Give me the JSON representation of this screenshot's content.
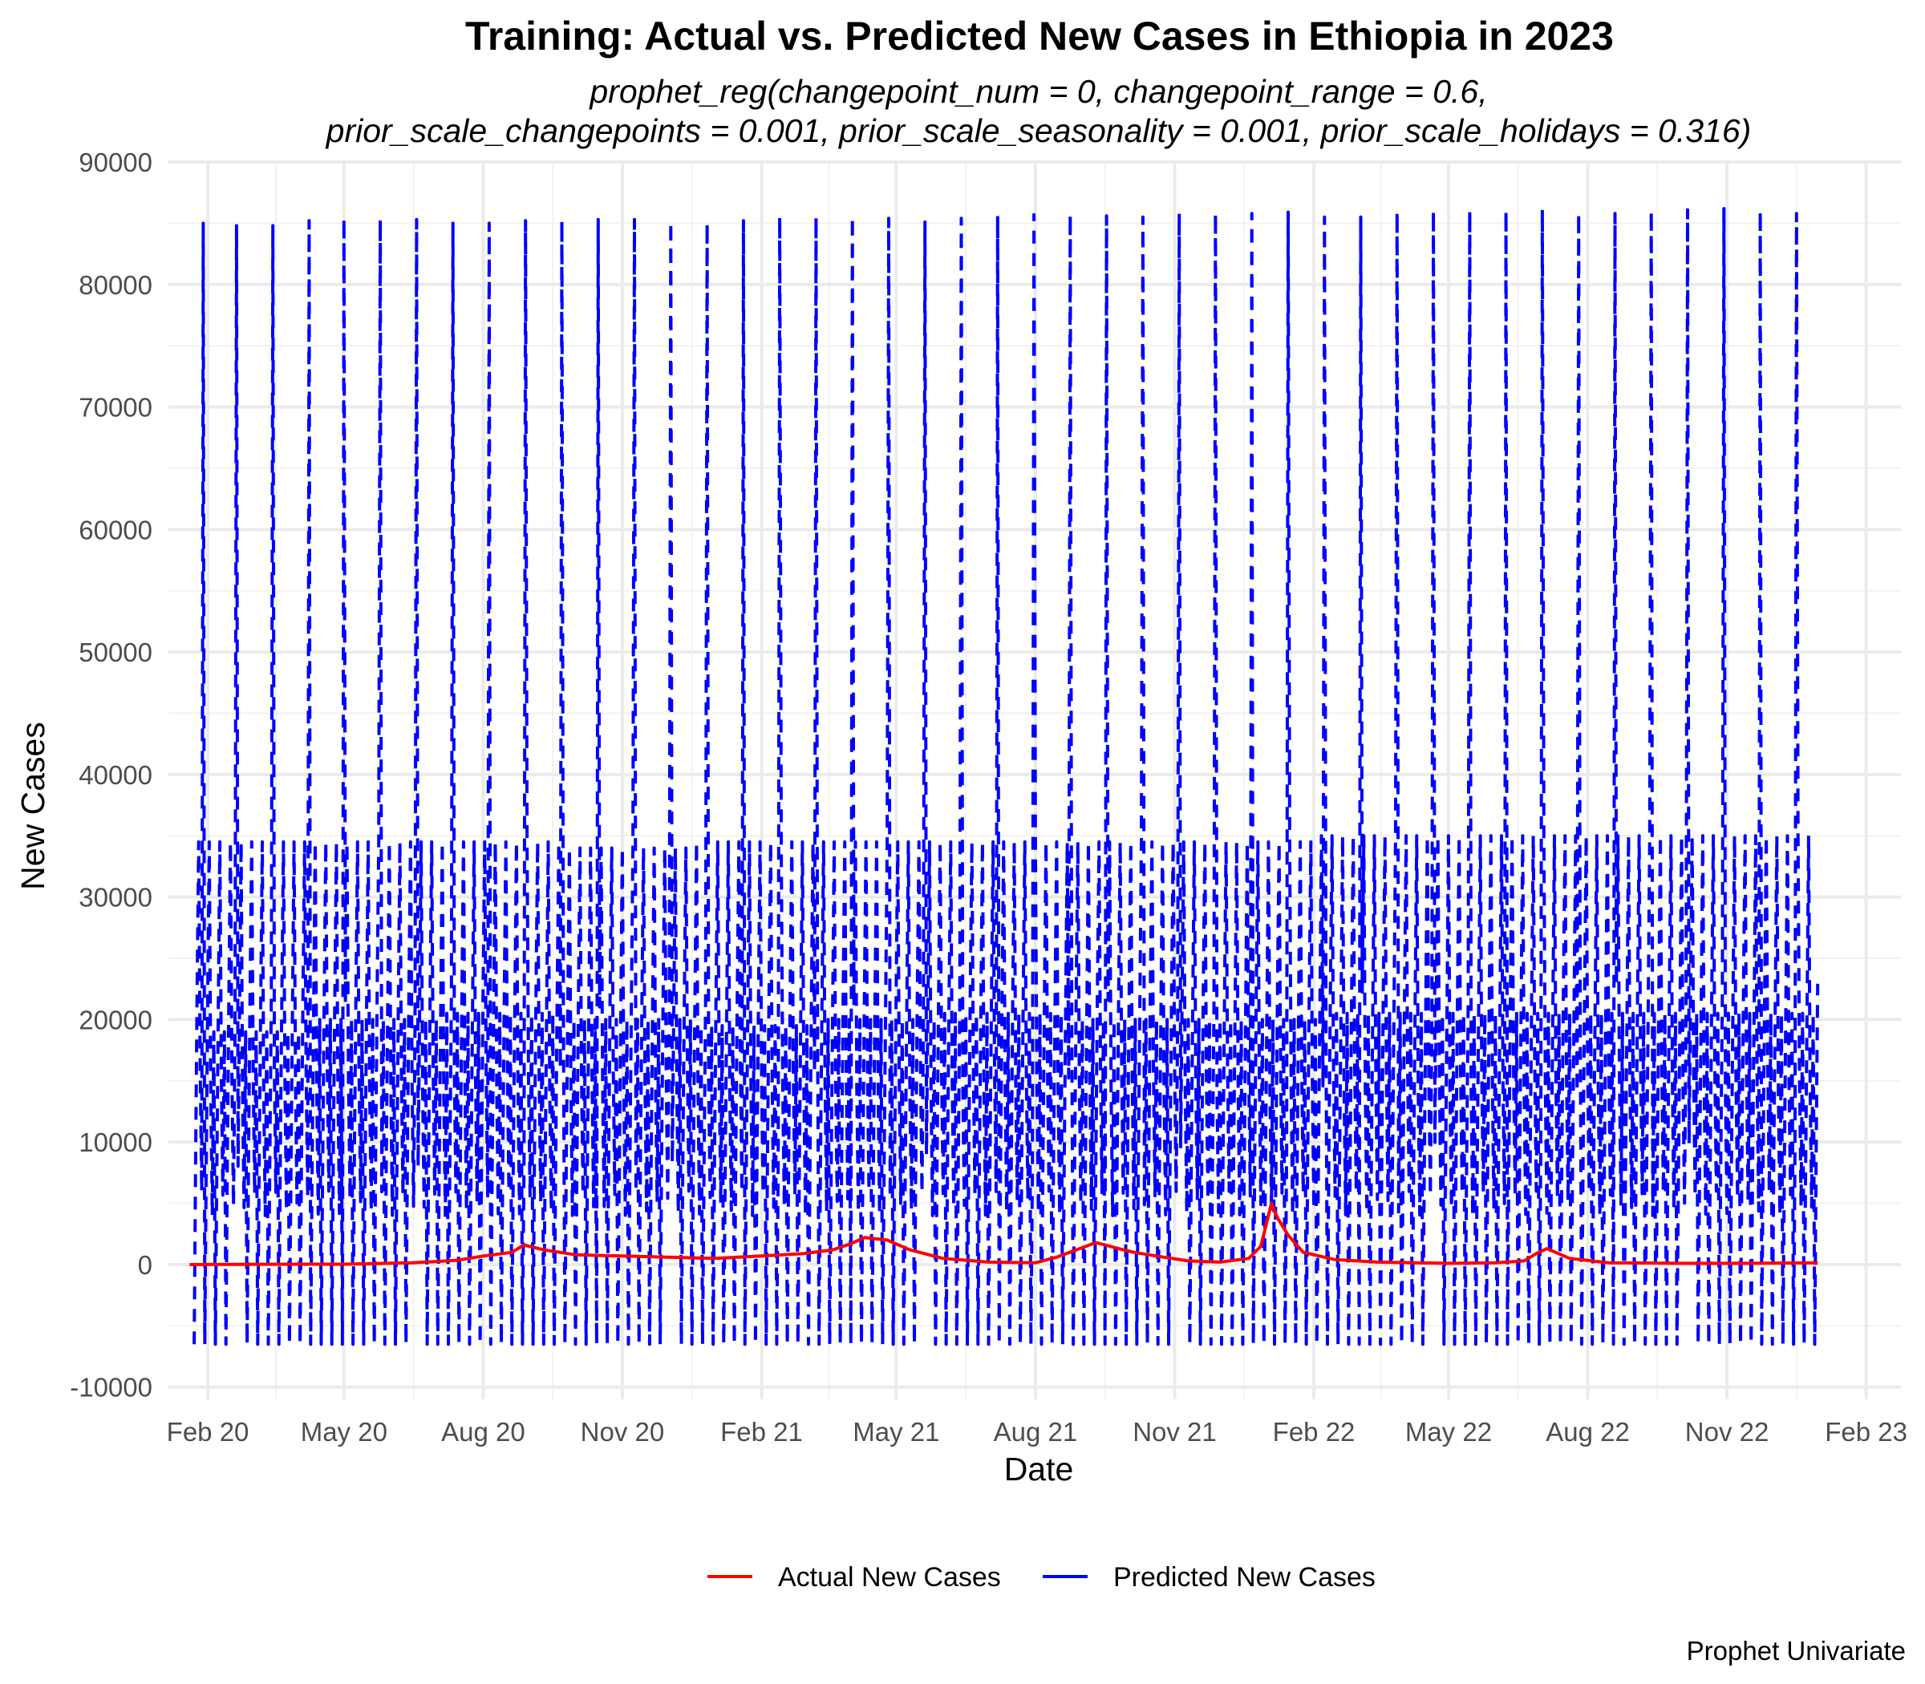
{
  "chart_data": {
    "type": "line",
    "title": "Training: Actual vs. Predicted New Cases in Ethiopia in 2023",
    "subtitle_lines": [
      "prophet_reg(changepoint_num = 0, changepoint_range = 0.6,",
      "prior_scale_changepoints = 0.001, prior_scale_seasonality = 0.001, prior_scale_holidays = 0.316)"
    ],
    "xlabel": "Date",
    "ylabel": "New Cases",
    "caption": "Prophet Univariate",
    "x_range": [
      "2020-01-06",
      "2023-02-24"
    ],
    "ylim": [
      -11000,
      90000
    ],
    "y_ticks": [
      -10000,
      0,
      10000,
      20000,
      30000,
      40000,
      50000,
      60000,
      70000,
      80000,
      90000
    ],
    "y_tick_labels": [
      "-10000",
      "0",
      "10000",
      "20000",
      "30000",
      "40000",
      "50000",
      "60000",
      "70000",
      "80000",
      "90000"
    ],
    "x_ticks": [
      {
        "date": "2020-02-01",
        "label": "Feb 20"
      },
      {
        "date": "2020-05-01",
        "label": "May 20"
      },
      {
        "date": "2020-08-01",
        "label": "Aug 20"
      },
      {
        "date": "2020-11-01",
        "label": "Nov 20"
      },
      {
        "date": "2021-02-01",
        "label": "Feb 21"
      },
      {
        "date": "2021-05-01",
        "label": "May 21"
      },
      {
        "date": "2021-08-01",
        "label": "Aug 21"
      },
      {
        "date": "2021-11-01",
        "label": "Nov 21"
      },
      {
        "date": "2022-02-01",
        "label": "Feb 22"
      },
      {
        "date": "2022-05-01",
        "label": "May 22"
      },
      {
        "date": "2022-08-01",
        "label": "Aug 22"
      },
      {
        "date": "2022-11-01",
        "label": "Nov 22"
      },
      {
        "date": "2023-02-01",
        "label": "Feb 23"
      }
    ],
    "grid": true,
    "legend_position": "bottom",
    "series": [
      {
        "name": "Actual New Cases",
        "color": "#ff0000",
        "line_style": "solid",
        "x": [
          "2020-01-20",
          "2020-03-01",
          "2020-05-01",
          "2020-06-15",
          "2020-07-15",
          "2020-08-01",
          "2020-08-20",
          "2020-08-28",
          "2020-09-10",
          "2020-10-01",
          "2020-11-01",
          "2020-12-01",
          "2021-01-01",
          "2021-02-01",
          "2021-03-01",
          "2021-03-20",
          "2021-04-01",
          "2021-04-10",
          "2021-04-25",
          "2021-05-10",
          "2021-06-01",
          "2021-07-01",
          "2021-08-01",
          "2021-08-15",
          "2021-08-28",
          "2021-09-10",
          "2021-09-25",
          "2021-10-05",
          "2021-10-25",
          "2021-11-10",
          "2021-12-01",
          "2021-12-20",
          "2021-12-28",
          "2022-01-04",
          "2022-01-08",
          "2022-01-15",
          "2022-01-25",
          "2022-02-15",
          "2022-03-15",
          "2022-05-01",
          "2022-06-01",
          "2022-06-20",
          "2022-06-28",
          "2022-07-05",
          "2022-07-20",
          "2022-08-15",
          "2022-10-01",
          "2022-11-15",
          "2022-12-31"
        ],
        "values": [
          0,
          20,
          30,
          150,
          350,
          700,
          1000,
          1600,
          1200,
          800,
          700,
          600,
          500,
          700,
          900,
          1200,
          1700,
          2200,
          2000,
          1200,
          500,
          200,
          150,
          600,
          1200,
          1800,
          1300,
          1000,
          600,
          300,
          200,
          500,
          1500,
          5000,
          3800,
          2400,
          1000,
          400,
          200,
          100,
          150,
          300,
          900,
          1300,
          500,
          150,
          100,
          100,
          150
        ]
      },
      {
        "name": "Predicted New Cases",
        "color": "#0000ff",
        "line_style": "dashed",
        "start": "2020-01-23",
        "end": "2022-12-31",
        "min": -6500,
        "weekly_high_peaks": [
          34500,
          34500,
          34500,
          34000,
          34500,
          34500,
          34500,
          34500,
          34500,
          35000,
          35000,
          35000,
          35000
        ],
        "weekly_low_peaks": [
          19000,
          20000,
          20500,
          20000,
          19500,
          20000,
          20500,
          20000,
          20000,
          20500,
          20500,
          20500,
          20500
        ],
        "monthly_spikes": {
          "dates": [
            "2020-01-29",
            "2020-02-20",
            "2020-03-15",
            "2020-04-08",
            "2020-05-01",
            "2020-05-25",
            "2020-06-18",
            "2020-07-12",
            "2020-08-05",
            "2020-08-29",
            "2020-09-22",
            "2020-10-16",
            "2020-11-09",
            "2020-12-03",
            "2020-12-27",
            "2021-01-20",
            "2021-02-13",
            "2021-03-09",
            "2021-04-02",
            "2021-04-26",
            "2021-05-20",
            "2021-06-13",
            "2021-07-07",
            "2021-07-31",
            "2021-08-24",
            "2021-09-17",
            "2021-10-11",
            "2021-11-04",
            "2021-11-28",
            "2021-12-22",
            "2022-01-15",
            "2022-02-08",
            "2022-03-04",
            "2022-03-28",
            "2022-04-21",
            "2022-05-15",
            "2022-06-08",
            "2022-07-02",
            "2022-07-26",
            "2022-08-19",
            "2022-09-12",
            "2022-10-06",
            "2022-10-30",
            "2022-11-23",
            "2022-12-17"
          ],
          "values": [
            85000,
            84800,
            84800,
            85200,
            85400,
            85300,
            85300,
            85000,
            85000,
            85200,
            85200,
            85300,
            85300,
            85100,
            85000,
            85200,
            85500,
            85500,
            85500,
            85400,
            85100,
            85400,
            85600,
            85700,
            85700,
            85600,
            85500,
            85800,
            85800,
            85800,
            85900,
            85500,
            85500,
            85900,
            86000,
            86000,
            86000,
            86100,
            85800,
            85800,
            86000,
            86100,
            86200,
            86000,
            85800
          ]
        }
      }
    ]
  }
}
